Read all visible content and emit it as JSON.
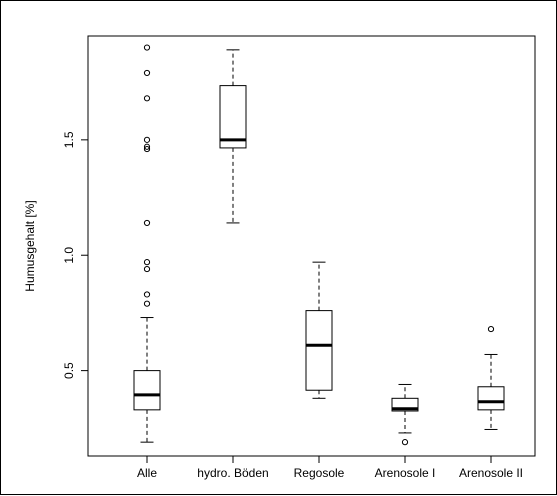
{
  "chart_data": {
    "type": "boxplot",
    "ylabel": "Humusgehalt [%]",
    "ylim": [
      0.13,
      1.95
    ],
    "yticks": [
      0.5,
      1.0,
      1.5
    ],
    "ytick_labels": [
      "0.5",
      "1.0",
      "1.5"
    ],
    "categories": [
      "Alle",
      "hydro. Böden",
      "Regosole",
      "Arenosole I",
      "Arenosole II"
    ],
    "boxes": [
      {
        "category": "Alle",
        "whisker_low": 0.19,
        "q1": 0.33,
        "median": 0.395,
        "q3": 0.5,
        "whisker_high": 0.73,
        "outliers": [
          0.79,
          0.83,
          0.94,
          0.97,
          1.14,
          1.46,
          1.47,
          1.5,
          1.68,
          1.79,
          1.9
        ]
      },
      {
        "category": "hydro. Böden",
        "whisker_low": 1.14,
        "q1": 1.465,
        "median": 1.5,
        "q3": 1.735,
        "whisker_high": 1.89,
        "outliers": []
      },
      {
        "category": "Regosole",
        "whisker_low": 0.38,
        "q1": 0.415,
        "median": 0.61,
        "q3": 0.76,
        "whisker_high": 0.97,
        "outliers": []
      },
      {
        "category": "Arenosole I",
        "whisker_low": 0.23,
        "q1": 0.325,
        "median": 0.335,
        "q3": 0.38,
        "whisker_high": 0.44,
        "outliers": [
          0.19
        ]
      },
      {
        "category": "Arenosole II",
        "whisker_low": 0.245,
        "q1": 0.33,
        "median": 0.365,
        "q3": 0.43,
        "whisker_high": 0.57,
        "outliers": [
          0.68
        ]
      }
    ]
  }
}
